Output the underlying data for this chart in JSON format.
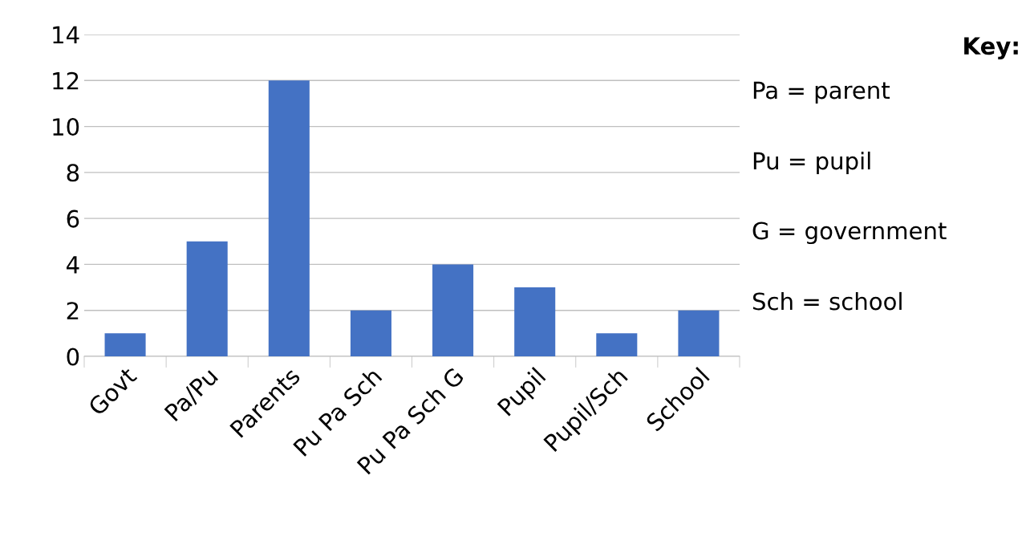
{
  "chart_data": {
    "type": "bar",
    "categories": [
      "Govt",
      "Pa/Pu",
      "Parents",
      "Pu Pa Sch",
      "Pu Pa Sch G",
      "Pupil",
      "Pupil/Sch",
      "School"
    ],
    "values": [
      1,
      5,
      12,
      2,
      4,
      3,
      1,
      2
    ],
    "color": "#4472c4",
    "ylim": [
      0,
      14
    ],
    "yticks": [
      0,
      2,
      4,
      6,
      8,
      10,
      12,
      14
    ],
    "grid": "y",
    "legend": false,
    "annotations": [
      "Key:",
      "Pa = parent",
      "Pu = pupil",
      "G = government",
      "Sch = school"
    ]
  }
}
